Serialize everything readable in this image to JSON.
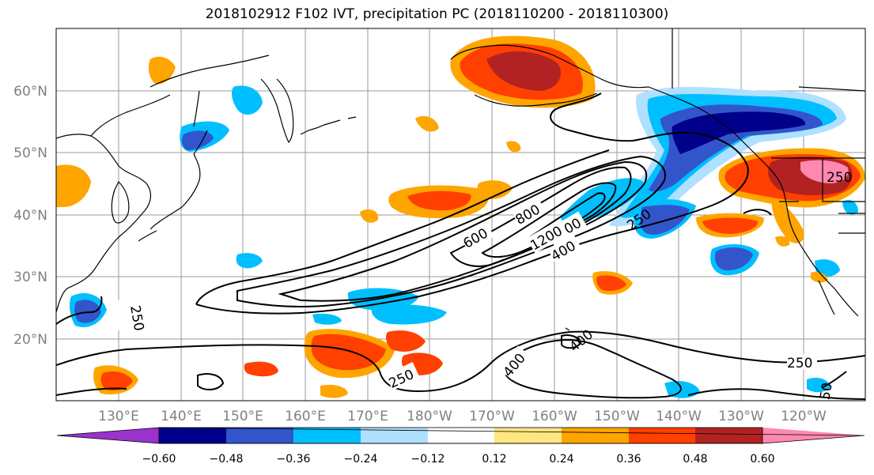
{
  "title": "2018102912 F102 IVT, precipitation PC (2018110200 - 2018110300)",
  "lat_ticks": [
    "60°N",
    "50°N",
    "40°N",
    "30°N",
    "20°N"
  ],
  "lon_ticks": [
    "130°E",
    "140°E",
    "150°E",
    "160°E",
    "170°E",
    "180°W",
    "170°W",
    "160°W",
    "150°W",
    "140°W",
    "130°W",
    "120°W"
  ],
  "contour_labels": [
    "250",
    "250",
    "250",
    "250",
    "400",
    "400",
    "400",
    "600",
    "800",
    "1000",
    "1200",
    "250",
    "50"
  ],
  "colorbar": {
    "tick_labels": [
      "−0.60",
      "−0.48",
      "−0.36",
      "−0.24",
      "−0.12",
      "0.12",
      "0.24",
      "0.36",
      "0.48",
      "0.60"
    ],
    "colors": [
      "#9933cc",
      "#00008b",
      "#3355cc",
      "#00bfff",
      "#b0e0ff",
      "#ffffff",
      "#ffe680",
      "#ffa500",
      "#ff4000",
      "#b22222",
      "#ff88b0"
    ]
  }
}
